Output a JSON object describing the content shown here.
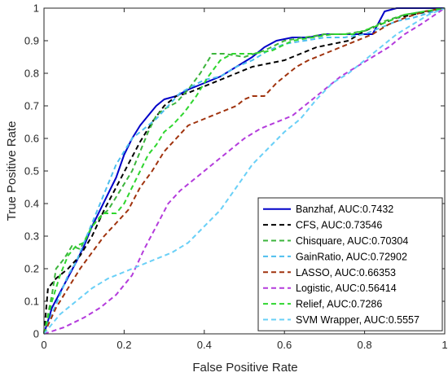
{
  "chart_data": {
    "type": "line",
    "title": "",
    "xlabel": "False Positive Rate",
    "ylabel": "True Positive Rate",
    "xlim": [
      0,
      1
    ],
    "ylim": [
      0,
      1
    ],
    "xticks": [
      "0",
      "0.2",
      "0.4",
      "0.6",
      "0.8",
      "1"
    ],
    "yticks": [
      "0",
      "0.1",
      "0.2",
      "0.3",
      "0.4",
      "0.5",
      "0.6",
      "0.7",
      "0.8",
      "0.9",
      "1"
    ],
    "grid": false,
    "legend_position": "bottom-right",
    "series": [
      {
        "name": "Banzhaf, AUC:0.7432",
        "color": "#0000c8",
        "dash": "solid",
        "width": 2,
        "points": [
          [
            0,
            0
          ],
          [
            0.02,
            0.08
          ],
          [
            0.05,
            0.15
          ],
          [
            0.08,
            0.22
          ],
          [
            0.1,
            0.27
          ],
          [
            0.12,
            0.33
          ],
          [
            0.14,
            0.38
          ],
          [
            0.16,
            0.43
          ],
          [
            0.18,
            0.48
          ],
          [
            0.2,
            0.55
          ],
          [
            0.22,
            0.6
          ],
          [
            0.24,
            0.64
          ],
          [
            0.26,
            0.67
          ],
          [
            0.28,
            0.7
          ],
          [
            0.3,
            0.72
          ],
          [
            0.33,
            0.73
          ],
          [
            0.36,
            0.75
          ],
          [
            0.4,
            0.77
          ],
          [
            0.44,
            0.79
          ],
          [
            0.48,
            0.82
          ],
          [
            0.52,
            0.85
          ],
          [
            0.55,
            0.88
          ],
          [
            0.58,
            0.9
          ],
          [
            0.62,
            0.91
          ],
          [
            0.66,
            0.91
          ],
          [
            0.7,
            0.92
          ],
          [
            0.74,
            0.92
          ],
          [
            0.78,
            0.92
          ],
          [
            0.82,
            0.92
          ],
          [
            0.85,
            0.99
          ],
          [
            0.88,
            1
          ],
          [
            0.95,
            1
          ],
          [
            1,
            1
          ]
        ]
      },
      {
        "name": "CFS, AUC:0.73546",
        "color": "#000000",
        "dash": "6,4",
        "width": 2,
        "points": [
          [
            0,
            0
          ],
          [
            0.01,
            0.14
          ],
          [
            0.03,
            0.17
          ],
          [
            0.06,
            0.2
          ],
          [
            0.09,
            0.24
          ],
          [
            0.12,
            0.3
          ],
          [
            0.15,
            0.38
          ],
          [
            0.18,
            0.45
          ],
          [
            0.21,
            0.52
          ],
          [
            0.24,
            0.59
          ],
          [
            0.27,
            0.65
          ],
          [
            0.3,
            0.7
          ],
          [
            0.33,
            0.73
          ],
          [
            0.36,
            0.74
          ],
          [
            0.4,
            0.76
          ],
          [
            0.44,
            0.78
          ],
          [
            0.48,
            0.8
          ],
          [
            0.52,
            0.82
          ],
          [
            0.56,
            0.83
          ],
          [
            0.6,
            0.84
          ],
          [
            0.64,
            0.86
          ],
          [
            0.68,
            0.88
          ],
          [
            0.72,
            0.89
          ],
          [
            0.76,
            0.9
          ],
          [
            0.8,
            0.93
          ],
          [
            0.84,
            0.95
          ],
          [
            0.88,
            0.97
          ],
          [
            0.92,
            0.98
          ],
          [
            0.96,
            0.99
          ],
          [
            1,
            1
          ]
        ]
      },
      {
        "name": "Chisquare, AUC:0.70304",
        "color": "#3cb43c",
        "dash": "6,4",
        "width": 2,
        "points": [
          [
            0,
            0
          ],
          [
            0.02,
            0.12
          ],
          [
            0.03,
            0.2
          ],
          [
            0.05,
            0.23
          ],
          [
            0.07,
            0.27
          ],
          [
            0.09,
            0.26
          ],
          [
            0.12,
            0.33
          ],
          [
            0.14,
            0.36
          ],
          [
            0.16,
            0.38
          ],
          [
            0.18,
            0.42
          ],
          [
            0.2,
            0.46
          ],
          [
            0.22,
            0.5
          ],
          [
            0.24,
            0.56
          ],
          [
            0.26,
            0.62
          ],
          [
            0.28,
            0.67
          ],
          [
            0.3,
            0.69
          ],
          [
            0.33,
            0.71
          ],
          [
            0.36,
            0.75
          ],
          [
            0.39,
            0.8
          ],
          [
            0.42,
            0.86
          ],
          [
            0.45,
            0.86
          ],
          [
            0.5,
            0.85
          ],
          [
            0.55,
            0.87
          ],
          [
            0.6,
            0.9
          ],
          [
            0.65,
            0.91
          ],
          [
            0.7,
            0.92
          ],
          [
            0.75,
            0.92
          ],
          [
            0.8,
            0.93
          ],
          [
            0.85,
            0.96
          ],
          [
            0.9,
            0.98
          ],
          [
            1,
            1
          ]
        ]
      },
      {
        "name": "GainRatio, AUC:0.72902",
        "color": "#4dbeee",
        "dash": "6,4",
        "width": 2,
        "points": [
          [
            0,
            0
          ],
          [
            0.02,
            0.06
          ],
          [
            0.04,
            0.12
          ],
          [
            0.06,
            0.18
          ],
          [
            0.08,
            0.22
          ],
          [
            0.1,
            0.28
          ],
          [
            0.12,
            0.34
          ],
          [
            0.14,
            0.4
          ],
          [
            0.16,
            0.46
          ],
          [
            0.18,
            0.52
          ],
          [
            0.2,
            0.56
          ],
          [
            0.22,
            0.6
          ],
          [
            0.25,
            0.63
          ],
          [
            0.28,
            0.66
          ],
          [
            0.31,
            0.7
          ],
          [
            0.34,
            0.74
          ],
          [
            0.37,
            0.76
          ],
          [
            0.4,
            0.78
          ],
          [
            0.44,
            0.79
          ],
          [
            0.48,
            0.82
          ],
          [
            0.52,
            0.84
          ],
          [
            0.56,
            0.87
          ],
          [
            0.6,
            0.89
          ],
          [
            0.65,
            0.9
          ],
          [
            0.7,
            0.91
          ],
          [
            0.75,
            0.91
          ],
          [
            0.8,
            0.92
          ],
          [
            0.84,
            0.94
          ],
          [
            0.88,
            0.96
          ],
          [
            0.92,
            0.97
          ],
          [
            1,
            1
          ]
        ]
      },
      {
        "name": "LASSO, AUC:0.66353",
        "color": "#a0330e",
        "dash": "6,4",
        "width": 2,
        "points": [
          [
            0,
            0
          ],
          [
            0.03,
            0.08
          ],
          [
            0.06,
            0.14
          ],
          [
            0.09,
            0.2
          ],
          [
            0.12,
            0.25
          ],
          [
            0.15,
            0.3
          ],
          [
            0.18,
            0.34
          ],
          [
            0.21,
            0.38
          ],
          [
            0.24,
            0.45
          ],
          [
            0.27,
            0.5
          ],
          [
            0.3,
            0.56
          ],
          [
            0.33,
            0.6
          ],
          [
            0.36,
            0.64
          ],
          [
            0.4,
            0.66
          ],
          [
            0.44,
            0.68
          ],
          [
            0.48,
            0.7
          ],
          [
            0.5,
            0.72
          ],
          [
            0.52,
            0.73
          ],
          [
            0.55,
            0.73
          ],
          [
            0.58,
            0.77
          ],
          [
            0.6,
            0.79
          ],
          [
            0.63,
            0.82
          ],
          [
            0.66,
            0.84
          ],
          [
            0.7,
            0.86
          ],
          [
            0.74,
            0.88
          ],
          [
            0.78,
            0.9
          ],
          [
            0.82,
            0.92
          ],
          [
            0.86,
            0.95
          ],
          [
            0.9,
            0.97
          ],
          [
            0.95,
            0.99
          ],
          [
            1,
            1
          ]
        ]
      },
      {
        "name": "Logistic, AUC:0.56414",
        "color": "#b43cdc",
        "dash": "6,4",
        "width": 2,
        "points": [
          [
            0,
            0
          ],
          [
            0.05,
            0.02
          ],
          [
            0.1,
            0.05
          ],
          [
            0.14,
            0.08
          ],
          [
            0.18,
            0.12
          ],
          [
            0.22,
            0.18
          ],
          [
            0.25,
            0.26
          ],
          [
            0.28,
            0.33
          ],
          [
            0.31,
            0.4
          ],
          [
            0.34,
            0.44
          ],
          [
            0.38,
            0.48
          ],
          [
            0.42,
            0.52
          ],
          [
            0.46,
            0.56
          ],
          [
            0.5,
            0.6
          ],
          [
            0.54,
            0.63
          ],
          [
            0.58,
            0.65
          ],
          [
            0.62,
            0.67
          ],
          [
            0.66,
            0.71
          ],
          [
            0.7,
            0.75
          ],
          [
            0.74,
            0.79
          ],
          [
            0.78,
            0.82
          ],
          [
            0.82,
            0.85
          ],
          [
            0.86,
            0.88
          ],
          [
            0.9,
            0.92
          ],
          [
            0.94,
            0.95
          ],
          [
            1,
            1
          ]
        ]
      },
      {
        "name": "Relief, AUC:0.7286",
        "color": "#2ed62e",
        "dash": "6,4",
        "width": 2,
        "points": [
          [
            0,
            0
          ],
          [
            0.02,
            0.1
          ],
          [
            0.04,
            0.18
          ],
          [
            0.06,
            0.24
          ],
          [
            0.08,
            0.27
          ],
          [
            0.1,
            0.28
          ],
          [
            0.12,
            0.33
          ],
          [
            0.15,
            0.37
          ],
          [
            0.18,
            0.37
          ],
          [
            0.2,
            0.4
          ],
          [
            0.22,
            0.45
          ],
          [
            0.24,
            0.5
          ],
          [
            0.26,
            0.55
          ],
          [
            0.28,
            0.58
          ],
          [
            0.3,
            0.62
          ],
          [
            0.32,
            0.64
          ],
          [
            0.35,
            0.68
          ],
          [
            0.38,
            0.73
          ],
          [
            0.41,
            0.79
          ],
          [
            0.44,
            0.84
          ],
          [
            0.47,
            0.86
          ],
          [
            0.52,
            0.86
          ],
          [
            0.57,
            0.87
          ],
          [
            0.62,
            0.9
          ],
          [
            0.67,
            0.91
          ],
          [
            0.72,
            0.92
          ],
          [
            0.77,
            0.92
          ],
          [
            0.82,
            0.94
          ],
          [
            0.86,
            0.96
          ],
          [
            0.9,
            0.98
          ],
          [
            1,
            1
          ]
        ]
      },
      {
        "name": "SVM Wrapper, AUC:0.5557",
        "color": "#6ad0f7",
        "dash": "6,4",
        "width": 2,
        "points": [
          [
            0,
            0
          ],
          [
            0.04,
            0.06
          ],
          [
            0.08,
            0.1
          ],
          [
            0.12,
            0.14
          ],
          [
            0.16,
            0.17
          ],
          [
            0.2,
            0.19
          ],
          [
            0.24,
            0.21
          ],
          [
            0.28,
            0.23
          ],
          [
            0.32,
            0.25
          ],
          [
            0.36,
            0.28
          ],
          [
            0.4,
            0.33
          ],
          [
            0.44,
            0.38
          ],
          [
            0.48,
            0.45
          ],
          [
            0.52,
            0.52
          ],
          [
            0.56,
            0.57
          ],
          [
            0.6,
            0.62
          ],
          [
            0.64,
            0.66
          ],
          [
            0.68,
            0.72
          ],
          [
            0.72,
            0.77
          ],
          [
            0.76,
            0.8
          ],
          [
            0.8,
            0.84
          ],
          [
            0.84,
            0.88
          ],
          [
            0.88,
            0.92
          ],
          [
            0.92,
            0.95
          ],
          [
            0.96,
            0.98
          ],
          [
            1,
            1
          ]
        ]
      }
    ]
  }
}
